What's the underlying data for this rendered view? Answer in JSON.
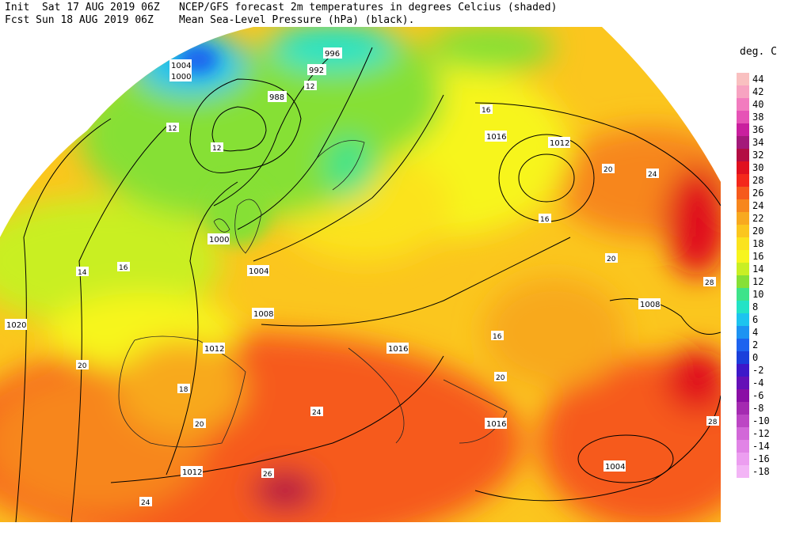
{
  "header": {
    "line1_left": "Init  Sat 17 AUG 2019 06Z",
    "line2_left": "Fcst Sun 18 AUG 2019 06Z",
    "line1_right": "NCEP/GFS forecast 2m temperatures in degrees Celcius (shaded)",
    "line2_right": "Mean Sea-Level Pressure (hPa) (black)."
  },
  "legend": {
    "title": "deg. C",
    "entries": [
      {
        "label": "44",
        "color": "#f9c0c0"
      },
      {
        "label": "42",
        "color": "#f7a3c1"
      },
      {
        "label": "40",
        "color": "#f27cbf"
      },
      {
        "label": "38",
        "color": "#e653b6"
      },
      {
        "label": "36",
        "color": "#c91f9e"
      },
      {
        "label": "34",
        "color": "#a3197a"
      },
      {
        "label": "32",
        "color": "#b30d43"
      },
      {
        "label": "30",
        "color": "#e0101f"
      },
      {
        "label": "28",
        "color": "#f4281b"
      },
      {
        "label": "26",
        "color": "#f65a1c"
      },
      {
        "label": "24",
        "color": "#f7861d"
      },
      {
        "label": "22",
        "color": "#f8a91f"
      },
      {
        "label": "20",
        "color": "#fbc61e"
      },
      {
        "label": "18",
        "color": "#fbe31e"
      },
      {
        "label": "16",
        "color": "#f7f51e"
      },
      {
        "label": "14",
        "color": "#c9ef24"
      },
      {
        "label": "12",
        "color": "#86e036"
      },
      {
        "label": "10",
        "color": "#3ee38a"
      },
      {
        "label": "8",
        "color": "#23e3c6"
      },
      {
        "label": "6",
        "color": "#1dc4ef"
      },
      {
        "label": "4",
        "color": "#1d93f2"
      },
      {
        "label": "2",
        "color": "#1d63ef"
      },
      {
        "label": "0",
        "color": "#1a3fdb"
      },
      {
        "label": "-2",
        "color": "#3d18c9"
      },
      {
        "label": "-4",
        "color": "#6510b7"
      },
      {
        "label": "-6",
        "color": "#8a0ea5"
      },
      {
        "label": "-8",
        "color": "#a42ab1"
      },
      {
        "label": "-10",
        "color": "#bc46c4"
      },
      {
        "label": "-12",
        "color": "#d268d8"
      },
      {
        "label": "-14",
        "color": "#e184e6"
      },
      {
        "label": "-16",
        "color": "#ec9ef0"
      },
      {
        "label": "-18",
        "color": "#f3b5f6"
      }
    ]
  },
  "isobars": [
    {
      "label": "1020"
    },
    {
      "label": "1016"
    },
    {
      "label": "1012"
    },
    {
      "label": "1008"
    },
    {
      "label": "1004"
    },
    {
      "label": "1000"
    },
    {
      "label": "996"
    },
    {
      "label": "992"
    },
    {
      "label": "988"
    },
    {
      "label": "1016"
    },
    {
      "label": "1012"
    },
    {
      "label": "1008"
    },
    {
      "label": "1004"
    },
    {
      "label": "1000"
    },
    {
      "label": "1004"
    },
    {
      "label": "1012"
    },
    {
      "label": "1016"
    }
  ],
  "temp_labels": [
    {
      "label": "12"
    },
    {
      "label": "12"
    },
    {
      "label": "12"
    },
    {
      "label": "16"
    },
    {
      "label": "14"
    },
    {
      "label": "16"
    },
    {
      "label": "20"
    },
    {
      "label": "20"
    },
    {
      "label": "24"
    },
    {
      "label": "28"
    },
    {
      "label": "26"
    },
    {
      "label": "24"
    },
    {
      "label": "20"
    },
    {
      "label": "16"
    },
    {
      "label": "20"
    },
    {
      "label": "24"
    },
    {
      "label": "28"
    },
    {
      "label": "20"
    },
    {
      "label": "16"
    },
    {
      "label": "18"
    }
  ]
}
